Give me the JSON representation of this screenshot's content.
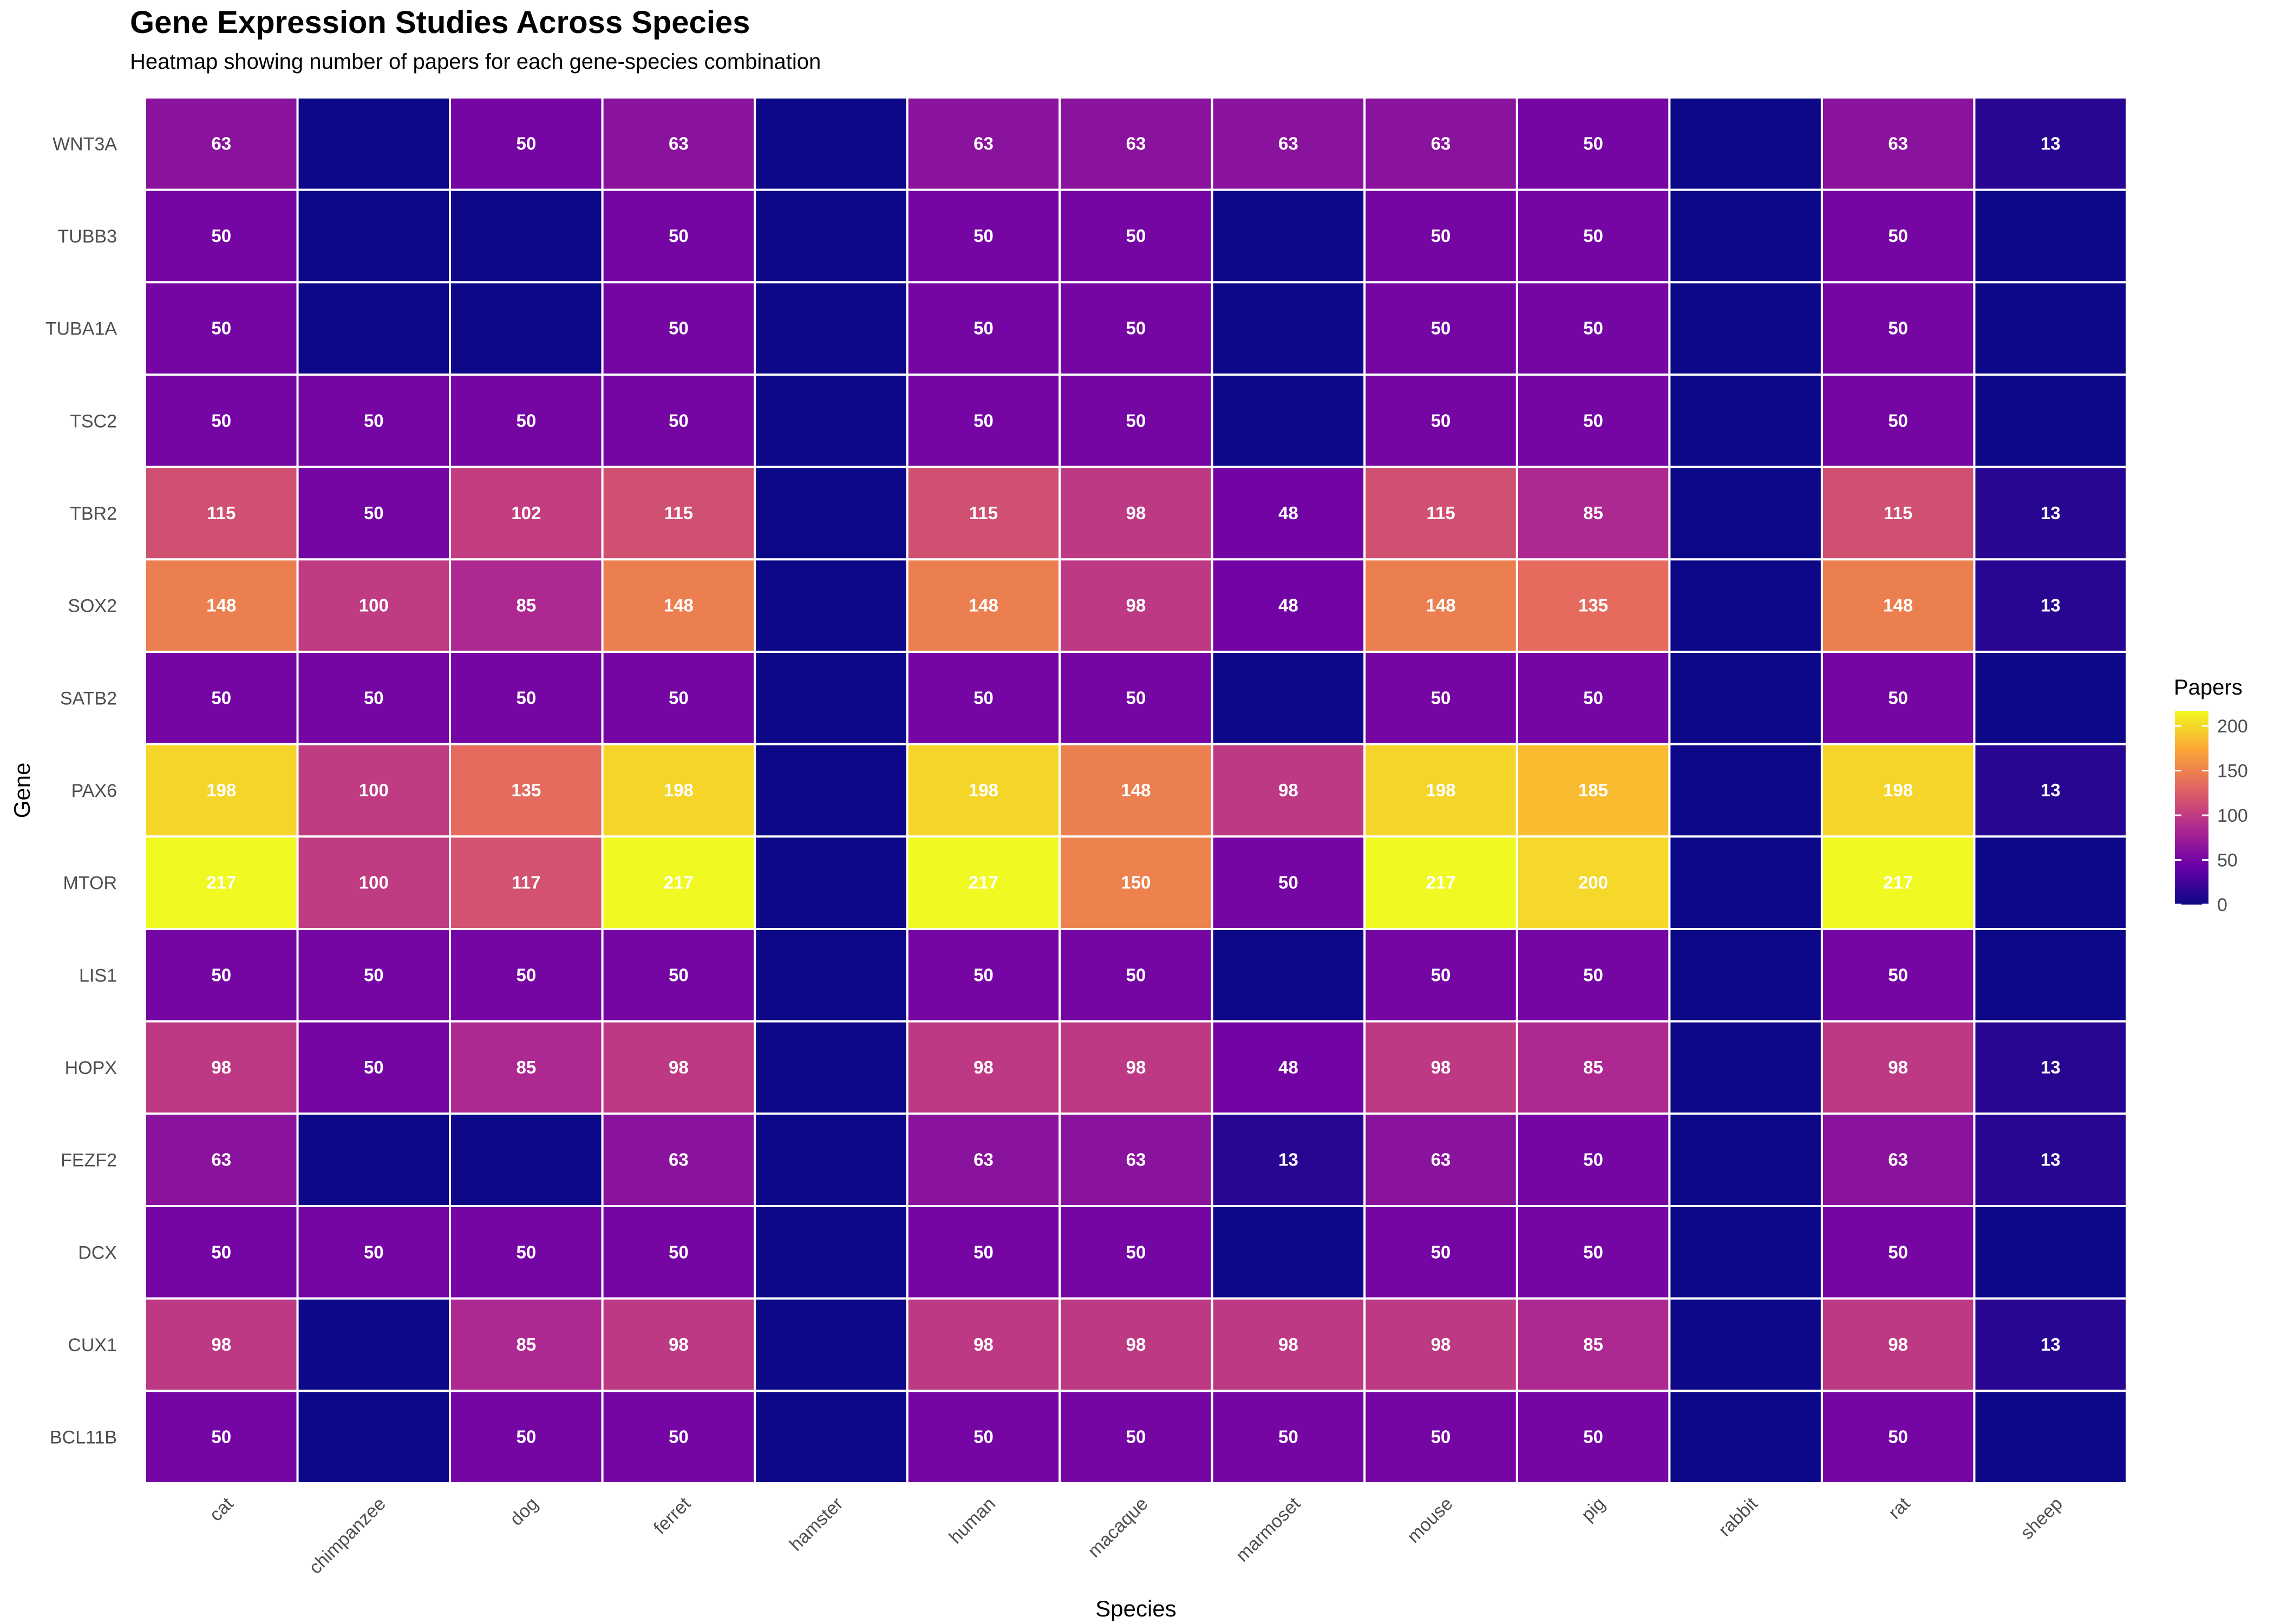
{
  "chart_data": {
    "type": "heatmap",
    "title": "Gene Expression Studies Across Species",
    "subtitle": "Heatmap showing number of papers for each gene-species combination",
    "xlabel": "Species",
    "ylabel": "Gene",
    "x_categories": [
      "cat",
      "chimpanzee",
      "dog",
      "ferret",
      "hamster",
      "human",
      "macaque",
      "marmoset",
      "mouse",
      "pig",
      "rabbit",
      "rat",
      "sheep"
    ],
    "y_categories_top_to_bottom": [
      "WNT3A",
      "TUBB3",
      "TUBA1A",
      "TSC2",
      "TBR2",
      "SOX2",
      "SATB2",
      "PAX6",
      "MTOR",
      "LIS1",
      "HOPX",
      "FEZF2",
      "DCX",
      "CUX1",
      "BCL11B"
    ],
    "values": [
      [
        63,
        0,
        50,
        63,
        0,
        63,
        63,
        63,
        63,
        50,
        0,
        63,
        13
      ],
      [
        50,
        0,
        0,
        50,
        0,
        50,
        50,
        0,
        50,
        50,
        0,
        50,
        0
      ],
      [
        50,
        0,
        0,
        50,
        0,
        50,
        50,
        0,
        50,
        50,
        0,
        50,
        0
      ],
      [
        50,
        50,
        50,
        50,
        0,
        50,
        50,
        0,
        50,
        50,
        0,
        50,
        0
      ],
      [
        115,
        50,
        102,
        115,
        0,
        115,
        98,
        48,
        115,
        85,
        0,
        115,
        13
      ],
      [
        148,
        100,
        85,
        148,
        0,
        148,
        98,
        48,
        148,
        135,
        0,
        148,
        13
      ],
      [
        50,
        50,
        50,
        50,
        0,
        50,
        50,
        0,
        50,
        50,
        0,
        50,
        0
      ],
      [
        198,
        100,
        135,
        198,
        0,
        198,
        148,
        98,
        198,
        185,
        0,
        198,
        13
      ],
      [
        217,
        100,
        117,
        217,
        0,
        217,
        150,
        50,
        217,
        200,
        0,
        217,
        0
      ],
      [
        50,
        50,
        50,
        50,
        0,
        50,
        50,
        0,
        50,
        50,
        0,
        50,
        0
      ],
      [
        98,
        50,
        85,
        98,
        0,
        98,
        98,
        48,
        98,
        85,
        0,
        98,
        13
      ],
      [
        63,
        0,
        0,
        63,
        0,
        63,
        63,
        13,
        63,
        50,
        0,
        63,
        13
      ],
      [
        50,
        50,
        50,
        50,
        0,
        50,
        50,
        0,
        50,
        50,
        0,
        50,
        0
      ],
      [
        98,
        0,
        85,
        98,
        0,
        98,
        98,
        98,
        98,
        85,
        0,
        98,
        13
      ],
      [
        50,
        0,
        50,
        50,
        0,
        50,
        50,
        50,
        50,
        50,
        0,
        50,
        0
      ]
    ],
    "value_labels_shown_for_zero": false,
    "color_scale": {
      "name": "plasma",
      "min": 0,
      "max": 217,
      "stops": [
        "#0d0887",
        "#6a00a8",
        "#b12a90",
        "#e16462",
        "#fca636",
        "#f0f921"
      ]
    },
    "cell_border_color": "#ffffff",
    "legend": {
      "title": "Papers",
      "ticks": [
        0,
        50,
        100,
        150,
        200
      ],
      "position": "right"
    }
  }
}
